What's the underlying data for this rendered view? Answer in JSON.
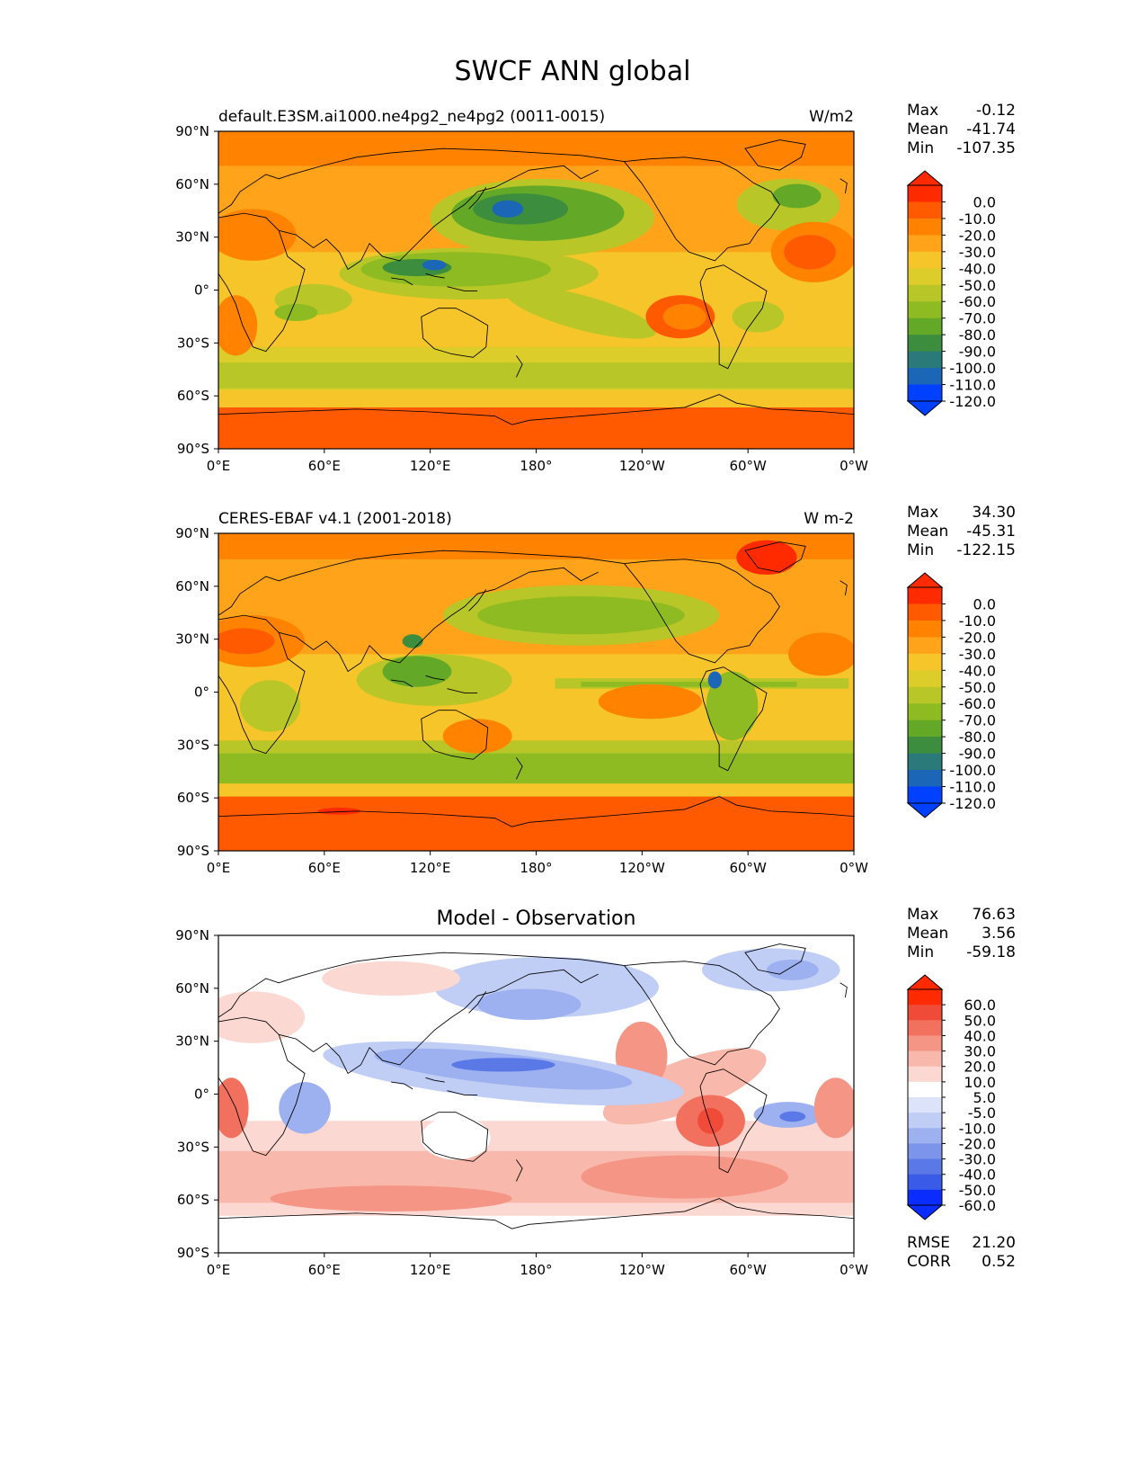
{
  "title": "SWCF ANN global",
  "x_ticks": [
    "0°E",
    "60°E",
    "120°E",
    "180°",
    "120°W",
    "60°W",
    "0°W"
  ],
  "y_ticks": [
    "90°N",
    "60°N",
    "30°N",
    "0°",
    "30°S",
    "60°S",
    "90°S"
  ],
  "panels": [
    {
      "id": "model",
      "left_title": "default.E3SM.ai1000.ne4pg2_ne4pg2 (0011-0015)",
      "center_title": "",
      "right_title": "W/m2",
      "stats": [
        {
          "label": "Max",
          "value": "-0.12"
        },
        {
          "label": "Mean",
          "value": "-41.74"
        },
        {
          "label": "Min",
          "value": "-107.35"
        }
      ],
      "colorbar_labels": [
        "0.0",
        "-10.0",
        "-20.0",
        "-30.0",
        "-40.0",
        "-50.0",
        "-60.0",
        "-70.0",
        "-80.0",
        "-90.0",
        "-100.0",
        "-110.0",
        "-120.0"
      ],
      "colorbar_colors": [
        "#ff2a00",
        "#ff5a00",
        "#ff8200",
        "#ffa31a",
        "#f5c52a",
        "#dccd2a",
        "#b8c727",
        "#8fbb22",
        "#63a826",
        "#3c8d3e",
        "#2b7a7a",
        "#1c66b8",
        "#0040ff"
      ],
      "extra_stats": []
    },
    {
      "id": "obs",
      "left_title": "CERES-EBAF v4.1 (2001-2018)",
      "center_title": "",
      "right_title": "W m-2",
      "stats": [
        {
          "label": "Max",
          "value": "34.30"
        },
        {
          "label": "Mean",
          "value": "-45.31"
        },
        {
          "label": "Min",
          "value": "-122.15"
        }
      ],
      "colorbar_labels": [
        "0.0",
        "-10.0",
        "-20.0",
        "-30.0",
        "-40.0",
        "-50.0",
        "-60.0",
        "-70.0",
        "-80.0",
        "-90.0",
        "-100.0",
        "-110.0",
        "-120.0"
      ],
      "colorbar_colors": [
        "#ff2a00",
        "#ff5a00",
        "#ff8200",
        "#ffa31a",
        "#f5c52a",
        "#dccd2a",
        "#b8c727",
        "#8fbb22",
        "#63a826",
        "#3c8d3e",
        "#2b7a7a",
        "#1c66b8",
        "#0040ff"
      ],
      "extra_stats": []
    },
    {
      "id": "diff",
      "left_title": "",
      "center_title": "Model - Observation",
      "right_title": "",
      "stats": [
        {
          "label": "Max",
          "value": "76.63"
        },
        {
          "label": "Mean",
          "value": "3.56"
        },
        {
          "label": "Min",
          "value": "-59.18"
        }
      ],
      "colorbar_labels": [
        "60.0",
        "50.0",
        "40.0",
        "30.0",
        "20.0",
        "10.0",
        "5.0",
        "-5.0",
        "-10.0",
        "-20.0",
        "-30.0",
        "-40.0",
        "-50.0",
        "-60.0"
      ],
      "colorbar_colors": [
        "#ff2a00",
        "#f04a38",
        "#f2705e",
        "#f59585",
        "#f8b8ab",
        "#fbd8d2",
        "#ffffff",
        "#dde3f8",
        "#c0cdf5",
        "#9db0f0",
        "#7c95ea",
        "#5a78e6",
        "#3a5ae8",
        "#0a2cff"
      ],
      "extra_stats": [
        {
          "label": "RMSE",
          "value": "21.20"
        },
        {
          "label": "CORR",
          "value": "0.52"
        }
      ]
    }
  ]
}
